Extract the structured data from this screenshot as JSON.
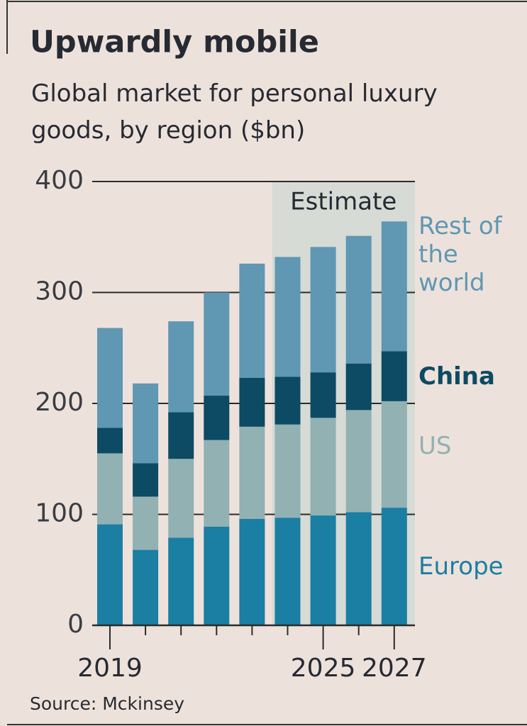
{
  "chart_data": {
    "type": "stacked_bar",
    "title": "Upwardly mobile",
    "subtitle": "Global market for personal luxury goods, by region ($bn)",
    "source": "Source: Mckinsey",
    "annotation": "Estimate",
    "categories": [
      "2019",
      null,
      null,
      null,
      null,
      null,
      "2025",
      null,
      "2027"
    ],
    "series": [
      {
        "name": "Europe",
        "color": "#1b7ea3",
        "values": [
          91,
          68,
          79,
          89,
          96,
          97,
          99,
          102,
          106
        ]
      },
      {
        "name": "US",
        "color": "#91b1b3",
        "values": [
          64,
          48,
          71,
          78,
          83,
          84,
          88,
          92,
          96
        ]
      },
      {
        "name": "China",
        "color": "#0d4a63",
        "values": [
          23,
          30,
          42,
          40,
          44,
          43,
          41,
          42,
          45
        ]
      },
      {
        "name": "Rest of the world",
        "color": "#6097b3",
        "values": [
          90,
          72,
          82,
          93,
          103,
          108,
          113,
          115,
          117
        ]
      }
    ],
    "ylim": [
      0,
      400
    ],
    "yticks": [
      0,
      100,
      200,
      300,
      400
    ],
    "grid": true
  }
}
